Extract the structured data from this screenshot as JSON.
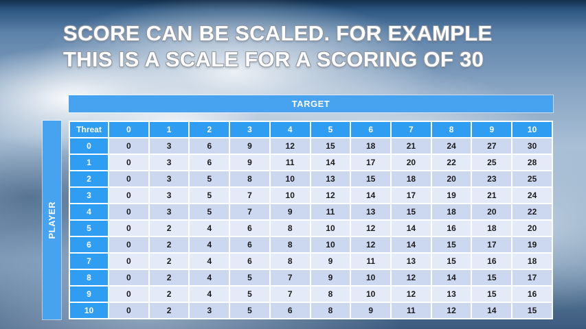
{
  "title": {
    "line1": "SCORE CAN BE SCALED. FOR EXAMPLE",
    "line2": "THIS IS A SCALE FOR A SCORING OF 30"
  },
  "table": {
    "target_label": "TARGET",
    "player_label": "PLAYER",
    "threat_label": "Threat",
    "columns": [
      "0",
      "1",
      "2",
      "3",
      "4",
      "5",
      "6",
      "7",
      "8",
      "9",
      "10"
    ],
    "rows": [
      {
        "threat": "0",
        "values": [
          0,
          3,
          6,
          9,
          12,
          15,
          18,
          21,
          24,
          27,
          30
        ]
      },
      {
        "threat": "1",
        "values": [
          0,
          3,
          6,
          9,
          11,
          14,
          17,
          20,
          22,
          25,
          28
        ]
      },
      {
        "threat": "2",
        "values": [
          0,
          3,
          5,
          8,
          10,
          13,
          15,
          18,
          20,
          23,
          25
        ]
      },
      {
        "threat": "3",
        "values": [
          0,
          3,
          5,
          7,
          10,
          12,
          14,
          17,
          19,
          21,
          24
        ]
      },
      {
        "threat": "4",
        "values": [
          0,
          3,
          5,
          7,
          9,
          11,
          13,
          15,
          18,
          20,
          22
        ]
      },
      {
        "threat": "5",
        "values": [
          0,
          2,
          4,
          6,
          8,
          10,
          12,
          14,
          16,
          18,
          20
        ]
      },
      {
        "threat": "6",
        "values": [
          0,
          2,
          4,
          6,
          8,
          10,
          12,
          14,
          15,
          17,
          19
        ]
      },
      {
        "threat": "7",
        "values": [
          0,
          2,
          4,
          6,
          8,
          9,
          11,
          13,
          15,
          16,
          18
        ]
      },
      {
        "threat": "8",
        "values": [
          0,
          2,
          4,
          5,
          7,
          9,
          10,
          12,
          14,
          15,
          17
        ]
      },
      {
        "threat": "9",
        "values": [
          0,
          2,
          4,
          5,
          7,
          8,
          10,
          12,
          13,
          15,
          16
        ]
      },
      {
        "threat": "10",
        "values": [
          0,
          2,
          3,
          5,
          6,
          8,
          9,
          11,
          12,
          14,
          15
        ]
      }
    ]
  },
  "colors": {
    "header_blue": "#2f9df2",
    "bar_blue": "#47a3ef",
    "row_even": "#ccd8ef",
    "row_odd": "#e4eaf7"
  }
}
